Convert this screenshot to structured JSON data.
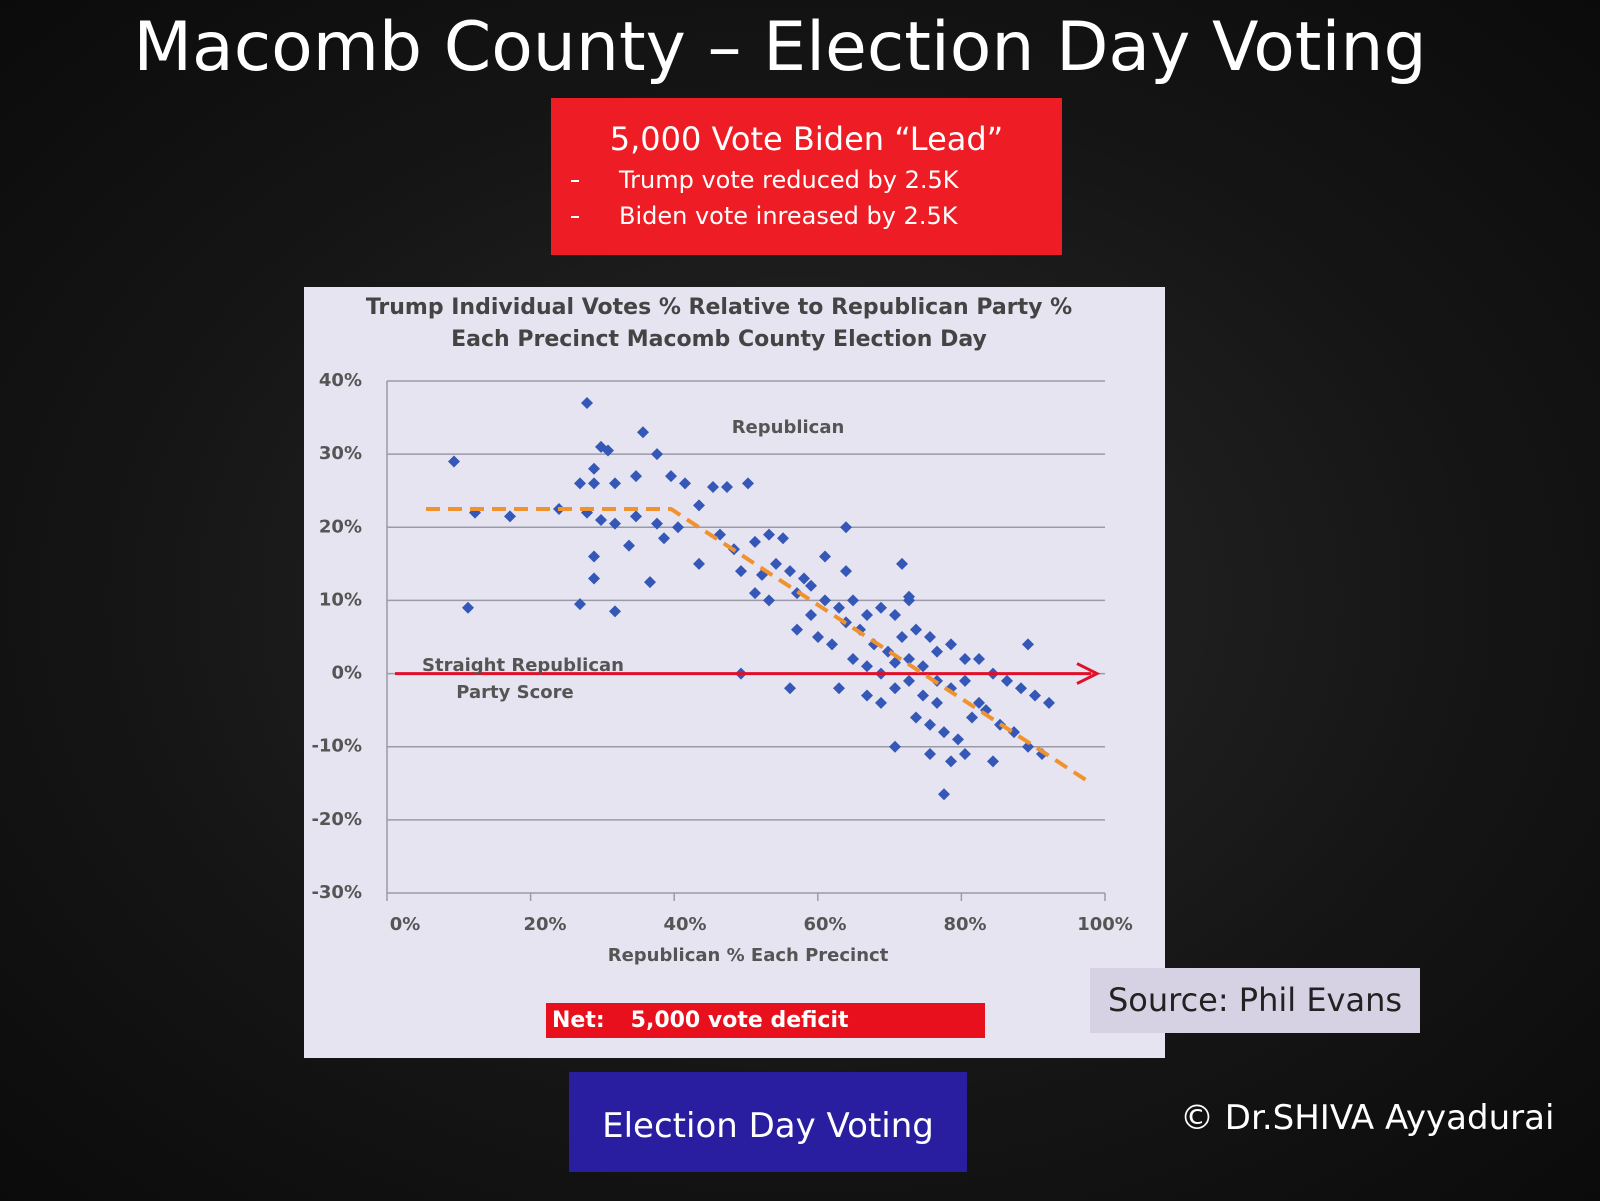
{
  "slide": {
    "title": "Macomb County – Election Day Voting",
    "callout": {
      "heading": "5,000 Vote Biden “Lead”",
      "bullets": [
        "Trump vote reduced by 2.5K",
        "Biden vote inreased by 2.5K"
      ]
    },
    "net": {
      "label": "Net:",
      "text": "5,000 vote deficit"
    },
    "source": "Source: Phil Evans",
    "button": "Election Day Voting",
    "copyright": "© Dr.SHIVA Ayyadurai"
  },
  "chart_data": {
    "type": "scatter",
    "title": "Trump Individual Votes % Relative to Republican Party % Each Precinct Macomb County Election Day",
    "xlabel": "Republican % Each Precinct",
    "annotations": [
      "Republican",
      "Straight Republican",
      "Party Score"
    ],
    "color": "#3558b8",
    "xlim": [
      0,
      100
    ],
    "xticks": [
      {
        "value": 0,
        "label": "0%"
      },
      {
        "value": 20,
        "label": "20%"
      },
      {
        "value": 40,
        "label": "40%"
      },
      {
        "value": 60,
        "label": "60%"
      },
      {
        "value": 80,
        "label": "80%"
      },
      {
        "value": 100,
        "label": "100%"
      }
    ],
    "ylim": [
      -30,
      40
    ],
    "yticks": [
      {
        "value": -30,
        "label": "-30%"
      },
      {
        "value": -20,
        "label": "-20%"
      },
      {
        "value": -10,
        "label": "-10%"
      },
      {
        "value": 0,
        "label": "0%"
      },
      {
        "value": 10,
        "label": "10%"
      },
      {
        "value": 20,
        "label": "20%"
      },
      {
        "value": 30,
        "label": "30%"
      },
      {
        "value": 40,
        "label": "40%"
      }
    ],
    "grid": true,
    "x": [
      7,
      10,
      15,
      9,
      22,
      26,
      28,
      29,
      34,
      36,
      25,
      27,
      27,
      30,
      33,
      38,
      40,
      26,
      28,
      30,
      33,
      36,
      37,
      32,
      27,
      27,
      25,
      30,
      35,
      39,
      42,
      44,
      46,
      49,
      45,
      47,
      42,
      50,
      52,
      54,
      48,
      51,
      53,
      55,
      57,
      50,
      52,
      56,
      58,
      60,
      63,
      60,
      62,
      64,
      58,
      56,
      59,
      61,
      63,
      65,
      66,
      68,
      70,
      72,
      67,
      69,
      71,
      73,
      75,
      64,
      66,
      68,
      70,
      72,
      74,
      76,
      78,
      80,
      82,
      84,
      86,
      88,
      90,
      62,
      66,
      68,
      70,
      72,
      74,
      76,
      78,
      80,
      73,
      75,
      77,
      79,
      81,
      83,
      85,
      87,
      89,
      91,
      70,
      75,
      78,
      80,
      77,
      63,
      71,
      72,
      55,
      48,
      89,
      92,
      84,
      82,
      76
    ],
    "values": [
      29,
      22,
      21.5,
      9,
      22.5,
      37,
      31,
      30.5,
      33,
      30,
      26,
      28,
      26,
      26,
      27,
      27,
      26,
      22,
      21,
      20.5,
      21.5,
      20.5,
      18.5,
      17.5,
      16,
      13,
      9.5,
      8.5,
      12.5,
      20,
      23,
      25.5,
      25.5,
      26,
      19,
      17,
      15,
      18,
      19,
      18.5,
      14,
      13.5,
      15,
      14,
      13,
      11,
      10,
      11,
      12,
      16,
      14,
      10,
      9,
      10,
      8,
      6,
      5,
      4,
      7,
      6,
      8,
      9,
      8,
      10,
      4,
      3,
      5,
      6,
      5,
      2,
      1,
      0,
      1.5,
      2,
      1,
      3,
      4,
      2,
      2,
      0,
      -1,
      -2,
      -3,
      -2,
      -3,
      -4,
      -2,
      -1,
      -3,
      -4,
      -2,
      -1,
      -6,
      -7,
      -8,
      -9,
      -6,
      -5,
      -7,
      -8,
      -10,
      -11,
      -10,
      -11,
      -12,
      -11,
      -16.5,
      20,
      15,
      10.5,
      -2,
      0,
      4,
      -4,
      -12,
      -4,
      -1
    ],
    "trend_line": {
      "color": "#f0922e",
      "x": [
        3,
        38,
        98
      ],
      "y": [
        22.5,
        22.5,
        -15
      ]
    },
    "reference_line": {
      "color": "#e0102a",
      "y": 0
    }
  }
}
